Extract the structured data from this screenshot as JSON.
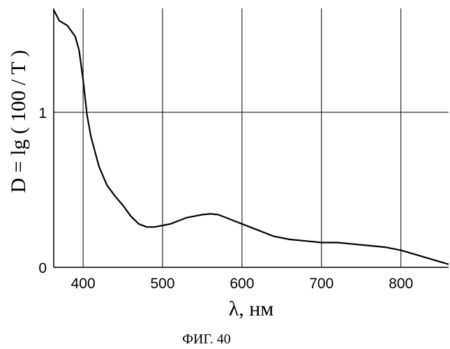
{
  "chart_data": {
    "type": "line",
    "ylabel": "D = lg ( 100 / T )",
    "xlabel": "λ, нм",
    "caption": "ФИГ. 40",
    "xlim": [
      363,
      860
    ],
    "ylim": [
      0,
      1.67
    ],
    "grid": true,
    "x_ticks": [
      400,
      500,
      600,
      700,
      800
    ],
    "x_tick_labels": [
      "400",
      "500",
      "600",
      "700",
      "800"
    ],
    "y_ticks": [
      0,
      1
    ],
    "y_tick_labels": [
      "0",
      "1"
    ],
    "series": [
      {
        "x": [
          363,
          366,
          370,
          380,
          390,
          395,
          400,
          405,
          410,
          420,
          430,
          440,
          450,
          460,
          470,
          480,
          490,
          500,
          510,
          520,
          530,
          540,
          550,
          560,
          570,
          580,
          590,
          600,
          620,
          640,
          660,
          680,
          700,
          720,
          740,
          760,
          780,
          800,
          820,
          840,
          860
        ],
        "y": [
          1.66,
          1.63,
          1.59,
          1.56,
          1.49,
          1.4,
          1.21,
          0.98,
          0.84,
          0.65,
          0.53,
          0.46,
          0.4,
          0.33,
          0.28,
          0.26,
          0.26,
          0.27,
          0.28,
          0.3,
          0.32,
          0.33,
          0.34,
          0.345,
          0.34,
          0.32,
          0.3,
          0.28,
          0.24,
          0.2,
          0.18,
          0.17,
          0.16,
          0.16,
          0.15,
          0.14,
          0.13,
          0.11,
          0.08,
          0.05,
          0.02
        ]
      }
    ]
  }
}
